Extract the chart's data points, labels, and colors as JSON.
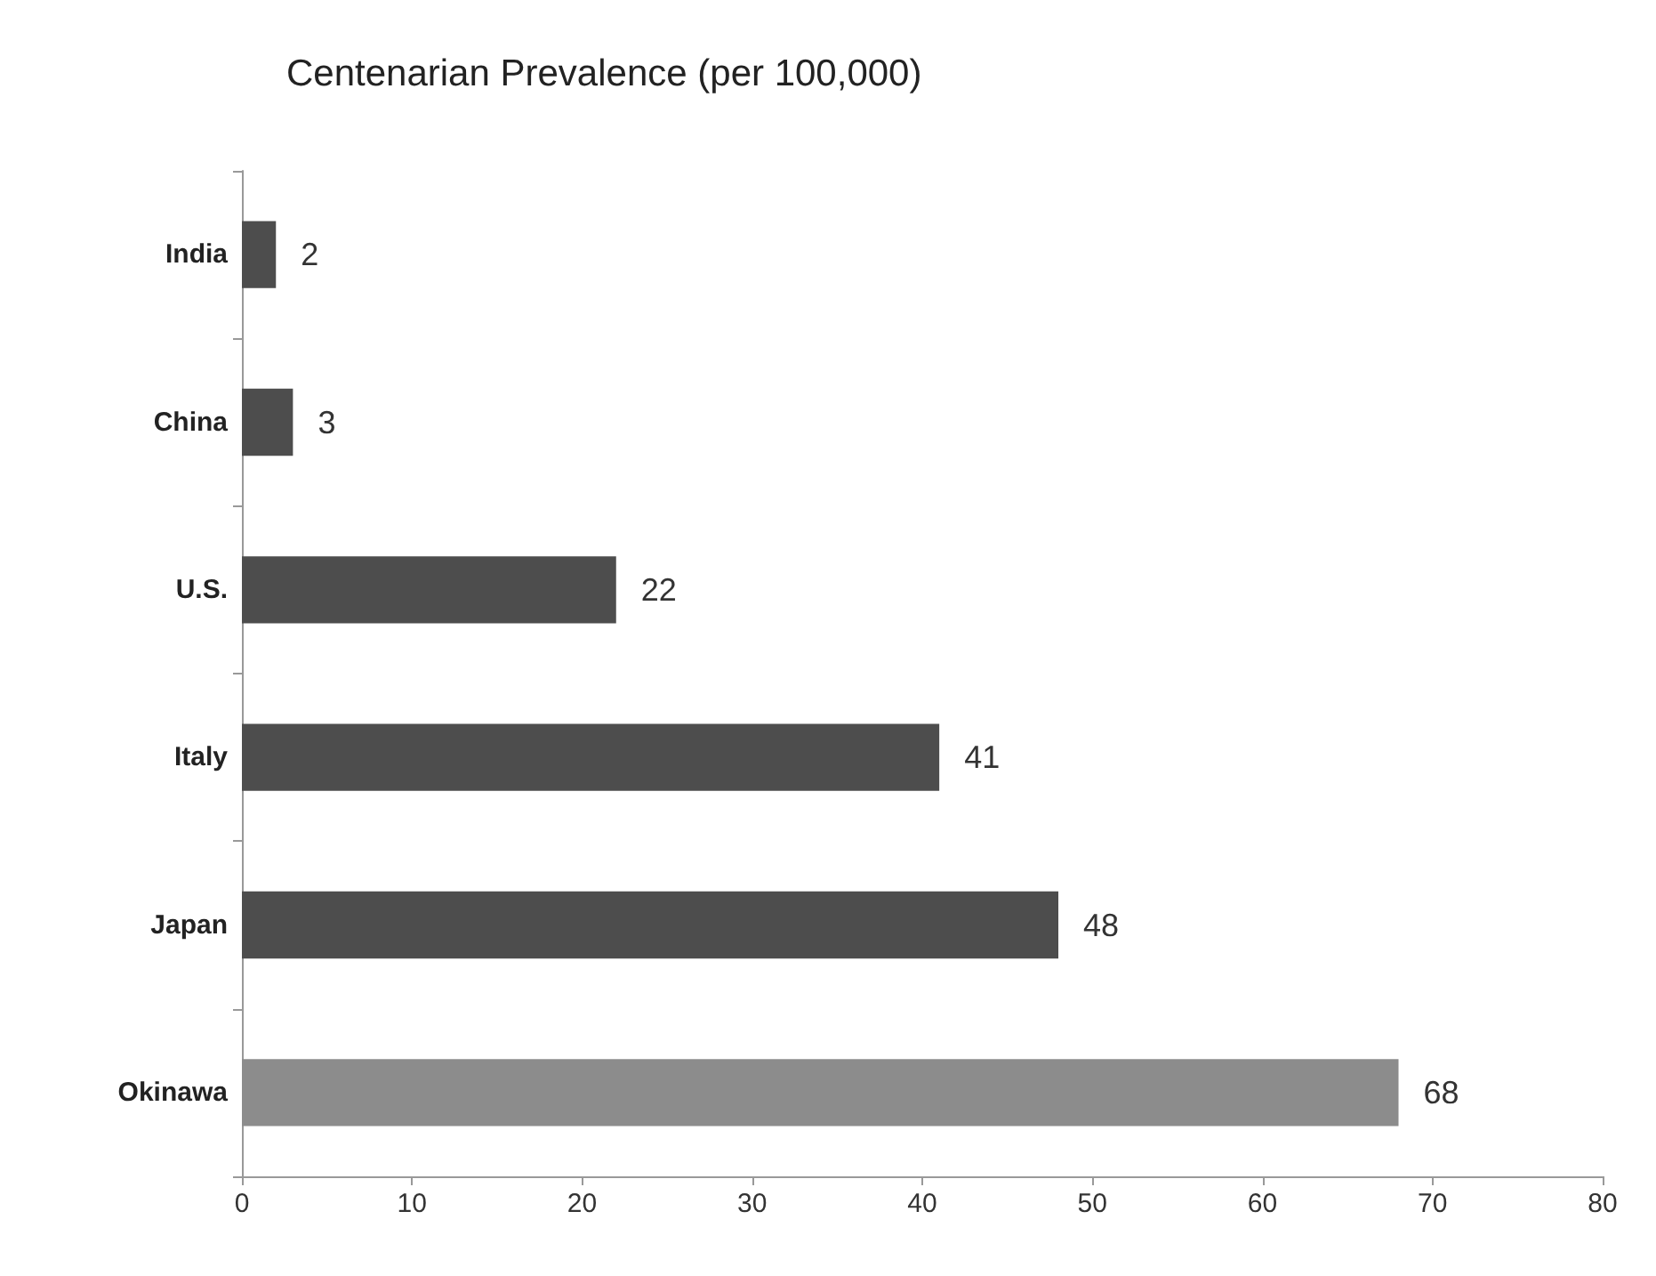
{
  "chart_data": {
    "type": "bar",
    "orientation": "horizontal",
    "title": "Centenarian Prevalence (per 100,000)",
    "categories": [
      "India",
      "China",
      "U.S.",
      "Italy",
      "Japan",
      "Okinawa"
    ],
    "values": [
      2,
      3,
      22,
      41,
      48,
      68
    ],
    "colors": [
      "#4d4d4d",
      "#4d4d4d",
      "#4d4d4d",
      "#4d4d4d",
      "#4d4d4d",
      "#8c8c8c"
    ],
    "xlim": [
      0,
      80
    ],
    "xticks": [
      0,
      10,
      20,
      30,
      40,
      50,
      60,
      70,
      80
    ],
    "data_labels": true
  }
}
